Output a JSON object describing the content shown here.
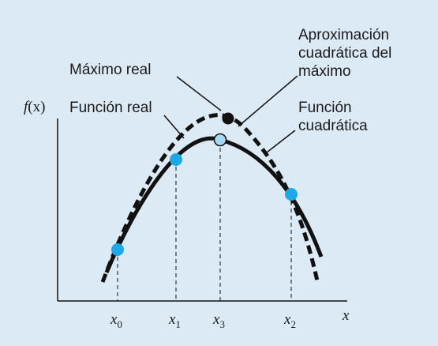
{
  "colors": {
    "background": "#dceaf6",
    "curve": "#111111",
    "point_fill": "#1ea8e8",
    "max_point": "#111111",
    "approx_point": "#a8d8f2"
  },
  "axes": {
    "y_label_f": "f",
    "y_label_paren": "(x)",
    "x_label": "x"
  },
  "ticks": [
    {
      "base": "x",
      "sub": "0"
    },
    {
      "base": "x",
      "sub": "1"
    },
    {
      "base": "x",
      "sub": "3"
    },
    {
      "base": "x",
      "sub": "2"
    }
  ],
  "labels": {
    "max_real": "Máximo real",
    "func_real": "Función real",
    "approx_line1": "Aproximación",
    "approx_line2": "cuadrática del",
    "approx_line3": "máximo",
    "func_quad_line1": "Función",
    "func_quad_line2": "cuadrática"
  }
}
